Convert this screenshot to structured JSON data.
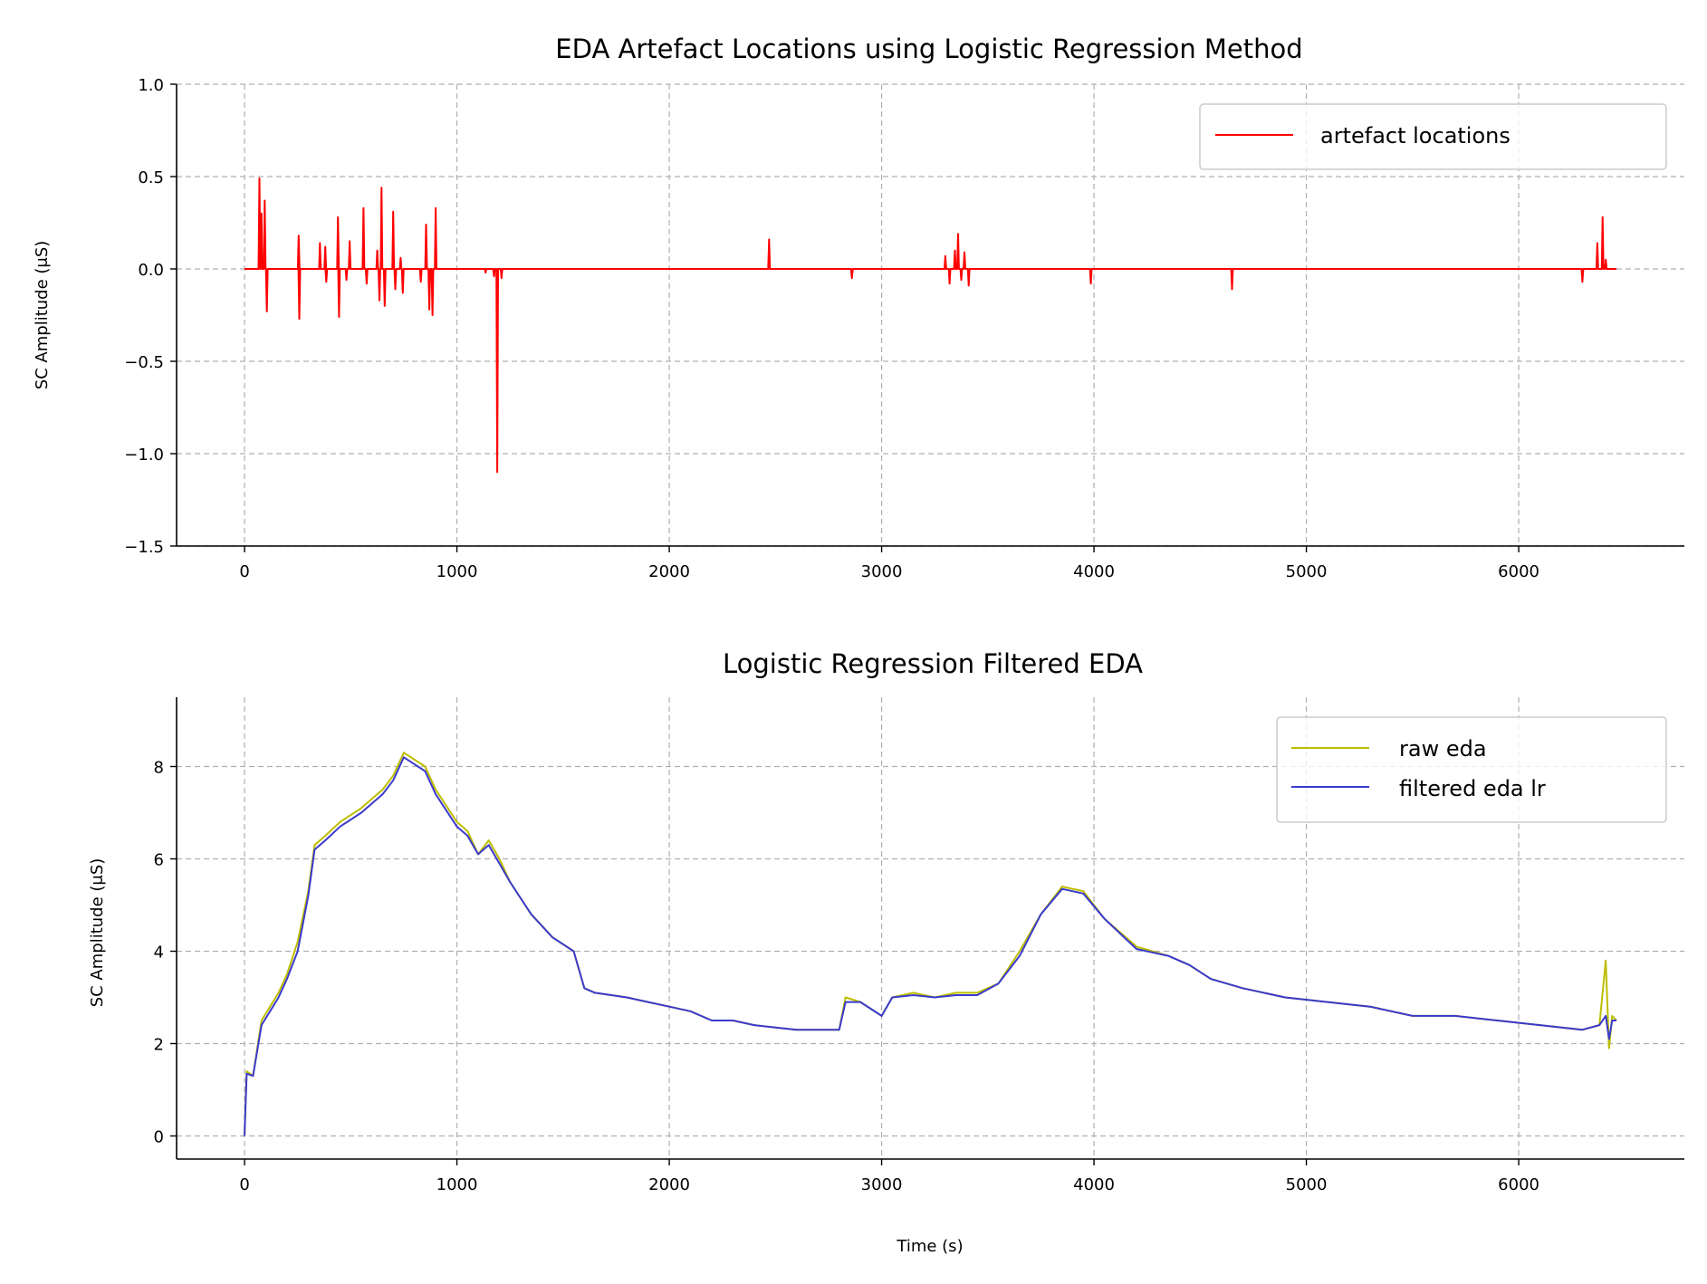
{
  "colors": {
    "artefact": "#ff0000",
    "raw": "#bdbd00",
    "filtered": "#3a3acc"
  },
  "chart_data": [
    {
      "type": "line",
      "title": "EDA Artefact Locations using Logistic Regression Method",
      "xlabel": "",
      "ylabel": "SC Amplitude (μS)",
      "xlim": [
        -320,
        6780
      ],
      "ylim": [
        -1.5,
        1.0
      ],
      "xticks": [
        0,
        1000,
        2000,
        3000,
        4000,
        5000,
        6000
      ],
      "xtick_labels": [
        "0",
        "1000",
        "2000",
        "3000",
        "4000",
        "5000",
        "6000"
      ],
      "yticks": [
        1.0,
        0.5,
        0.0,
        -0.5,
        -1.0,
        -1.5
      ],
      "ytick_labels": [
        "1.0",
        "0.5",
        "0.0",
        "−0.5",
        "−1.0",
        "−1.5"
      ],
      "grid": true,
      "legend_position": "top-right",
      "series": [
        {
          "name": "artefact locations",
          "color": "#ff0000",
          "baseline": 0,
          "x_range": [
            0,
            6460
          ],
          "spikes": [
            {
              "x": 70,
              "y": 0.49
            },
            {
              "x": 80,
              "y": 0.3
            },
            {
              "x": 95,
              "y": 0.37
            },
            {
              "x": 105,
              "y": -0.23
            },
            {
              "x": 255,
              "y": 0.18
            },
            {
              "x": 258,
              "y": -0.27
            },
            {
              "x": 355,
              "y": 0.14
            },
            {
              "x": 380,
              "y": 0.12
            },
            {
              "x": 385,
              "y": -0.07
            },
            {
              "x": 440,
              "y": 0.28
            },
            {
              "x": 445,
              "y": -0.26
            },
            {
              "x": 480,
              "y": -0.06
            },
            {
              "x": 495,
              "y": 0.15
            },
            {
              "x": 560,
              "y": 0.33
            },
            {
              "x": 575,
              "y": -0.08
            },
            {
              "x": 625,
              "y": 0.1
            },
            {
              "x": 635,
              "y": -0.17
            },
            {
              "x": 645,
              "y": 0.44
            },
            {
              "x": 660,
              "y": -0.2
            },
            {
              "x": 700,
              "y": 0.31
            },
            {
              "x": 710,
              "y": -0.11
            },
            {
              "x": 735,
              "y": 0.06
            },
            {
              "x": 745,
              "y": -0.13
            },
            {
              "x": 830,
              "y": -0.07
            },
            {
              "x": 855,
              "y": 0.24
            },
            {
              "x": 870,
              "y": -0.22
            },
            {
              "x": 885,
              "y": -0.25
            },
            {
              "x": 900,
              "y": 0.33
            },
            {
              "x": 1135,
              "y": -0.02
            },
            {
              "x": 1175,
              "y": -0.04
            },
            {
              "x": 1190,
              "y": -1.1
            },
            {
              "x": 1210,
              "y": -0.05
            },
            {
              "x": 2470,
              "y": 0.16
            },
            {
              "x": 2860,
              "y": -0.05
            },
            {
              "x": 3300,
              "y": 0.07
            },
            {
              "x": 3320,
              "y": -0.08
            },
            {
              "x": 3345,
              "y": 0.1
            },
            {
              "x": 3360,
              "y": 0.19
            },
            {
              "x": 3375,
              "y": -0.06
            },
            {
              "x": 3390,
              "y": 0.09
            },
            {
              "x": 3410,
              "y": -0.09
            },
            {
              "x": 3985,
              "y": -0.08
            },
            {
              "x": 4650,
              "y": -0.11
            },
            {
              "x": 6300,
              "y": -0.07
            },
            {
              "x": 6370,
              "y": 0.14
            },
            {
              "x": 6395,
              "y": 0.28
            },
            {
              "x": 6410,
              "y": 0.05
            }
          ]
        }
      ]
    },
    {
      "type": "line",
      "title": "Logistic Regression Filtered EDA",
      "xlabel": "Time (s)",
      "ylabel": "SC Amplitude (μS)",
      "xlim": [
        -320,
        6780
      ],
      "ylim": [
        -0.5,
        9.5
      ],
      "xticks": [
        0,
        1000,
        2000,
        3000,
        4000,
        5000,
        6000
      ],
      "xtick_labels": [
        "0",
        "1000",
        "2000",
        "3000",
        "4000",
        "5000",
        "6000"
      ],
      "yticks": [
        8,
        6,
        4,
        2,
        0
      ],
      "ytick_labels": [
        "8",
        "6",
        "4",
        "2",
        "0"
      ],
      "grid": true,
      "legend_position": "top-right",
      "series": [
        {
          "name": "raw eda",
          "color": "#bdbd00",
          "points": [
            [
              0,
              0
            ],
            [
              10,
              1.4
            ],
            [
              40,
              1.3
            ],
            [
              80,
              2.5
            ],
            [
              120,
              2.8
            ],
            [
              160,
              3.1
            ],
            [
              200,
              3.5
            ],
            [
              250,
              4.2
            ],
            [
              300,
              5.3
            ],
            [
              330,
              6.3
            ],
            [
              380,
              6.5
            ],
            [
              450,
              6.8
            ],
            [
              550,
              7.1
            ],
            [
              650,
              7.5
            ],
            [
              700,
              7.8
            ],
            [
              750,
              8.3
            ],
            [
              850,
              8.0
            ],
            [
              900,
              7.5
            ],
            [
              1000,
              6.8
            ],
            [
              1050,
              6.6
            ],
            [
              1100,
              6.1
            ],
            [
              1150,
              6.4
            ],
            [
              1200,
              6.0
            ],
            [
              1250,
              5.5
            ],
            [
              1350,
              4.8
            ],
            [
              1450,
              4.3
            ],
            [
              1550,
              4.0
            ],
            [
              1600,
              3.2
            ],
            [
              1650,
              3.1
            ],
            [
              1800,
              3.0
            ],
            [
              1900,
              2.9
            ],
            [
              2000,
              2.8
            ],
            [
              2100,
              2.7
            ],
            [
              2200,
              2.5
            ],
            [
              2300,
              2.5
            ],
            [
              2400,
              2.4
            ],
            [
              2500,
              2.35
            ],
            [
              2600,
              2.3
            ],
            [
              2700,
              2.3
            ],
            [
              2800,
              2.3
            ],
            [
              2830,
              3.0
            ],
            [
              2900,
              2.9
            ],
            [
              3000,
              2.6
            ],
            [
              3050,
              3.0
            ],
            [
              3150,
              3.1
            ],
            [
              3250,
              3.0
            ],
            [
              3350,
              3.1
            ],
            [
              3450,
              3.1
            ],
            [
              3550,
              3.3
            ],
            [
              3650,
              4.0
            ],
            [
              3750,
              4.8
            ],
            [
              3850,
              5.4
            ],
            [
              3950,
              5.3
            ],
            [
              4050,
              4.7
            ],
            [
              4200,
              4.1
            ],
            [
              4350,
              3.9
            ],
            [
              4450,
              3.7
            ],
            [
              4550,
              3.4
            ],
            [
              4700,
              3.2
            ],
            [
              4900,
              3.0
            ],
            [
              5100,
              2.9
            ],
            [
              5300,
              2.8
            ],
            [
              5500,
              2.6
            ],
            [
              5700,
              2.6
            ],
            [
              5900,
              2.5
            ],
            [
              6100,
              2.4
            ],
            [
              6300,
              2.3
            ],
            [
              6380,
              2.4
            ],
            [
              6410,
              3.8
            ],
            [
              6425,
              1.9
            ],
            [
              6440,
              2.6
            ],
            [
              6460,
              2.5
            ]
          ]
        },
        {
          "name": "filtered eda lr",
          "color": "#3a3acc",
          "points": [
            [
              0,
              0
            ],
            [
              10,
              1.35
            ],
            [
              40,
              1.3
            ],
            [
              80,
              2.4
            ],
            [
              120,
              2.7
            ],
            [
              160,
              3.0
            ],
            [
              200,
              3.4
            ],
            [
              250,
              4.0
            ],
            [
              300,
              5.2
            ],
            [
              330,
              6.2
            ],
            [
              380,
              6.4
            ],
            [
              450,
              6.7
            ],
            [
              550,
              7.0
            ],
            [
              650,
              7.4
            ],
            [
              700,
              7.7
            ],
            [
              750,
              8.2
            ],
            [
              850,
              7.9
            ],
            [
              900,
              7.4
            ],
            [
              1000,
              6.7
            ],
            [
              1050,
              6.5
            ],
            [
              1100,
              6.1
            ],
            [
              1150,
              6.3
            ],
            [
              1200,
              5.9
            ],
            [
              1250,
              5.5
            ],
            [
              1350,
              4.8
            ],
            [
              1450,
              4.3
            ],
            [
              1550,
              4.0
            ],
            [
              1600,
              3.2
            ],
            [
              1650,
              3.1
            ],
            [
              1800,
              3.0
            ],
            [
              1900,
              2.9
            ],
            [
              2000,
              2.8
            ],
            [
              2100,
              2.7
            ],
            [
              2200,
              2.5
            ],
            [
              2300,
              2.5
            ],
            [
              2400,
              2.4
            ],
            [
              2500,
              2.35
            ],
            [
              2600,
              2.3
            ],
            [
              2700,
              2.3
            ],
            [
              2800,
              2.3
            ],
            [
              2830,
              2.9
            ],
            [
              2900,
              2.9
            ],
            [
              3000,
              2.6
            ],
            [
              3050,
              3.0
            ],
            [
              3150,
              3.05
            ],
            [
              3250,
              3.0
            ],
            [
              3350,
              3.05
            ],
            [
              3450,
              3.05
            ],
            [
              3550,
              3.3
            ],
            [
              3650,
              3.9
            ],
            [
              3750,
              4.8
            ],
            [
              3850,
              5.35
            ],
            [
              3950,
              5.25
            ],
            [
              4050,
              4.7
            ],
            [
              4200,
              4.05
            ],
            [
              4350,
              3.9
            ],
            [
              4450,
              3.7
            ],
            [
              4550,
              3.4
            ],
            [
              4700,
              3.2
            ],
            [
              4900,
              3.0
            ],
            [
              5100,
              2.9
            ],
            [
              5300,
              2.8
            ],
            [
              5500,
              2.6
            ],
            [
              5700,
              2.6
            ],
            [
              5900,
              2.5
            ],
            [
              6100,
              2.4
            ],
            [
              6300,
              2.3
            ],
            [
              6380,
              2.4
            ],
            [
              6410,
              2.6
            ],
            [
              6425,
              2.1
            ],
            [
              6440,
              2.5
            ],
            [
              6460,
              2.5
            ]
          ]
        }
      ]
    }
  ]
}
